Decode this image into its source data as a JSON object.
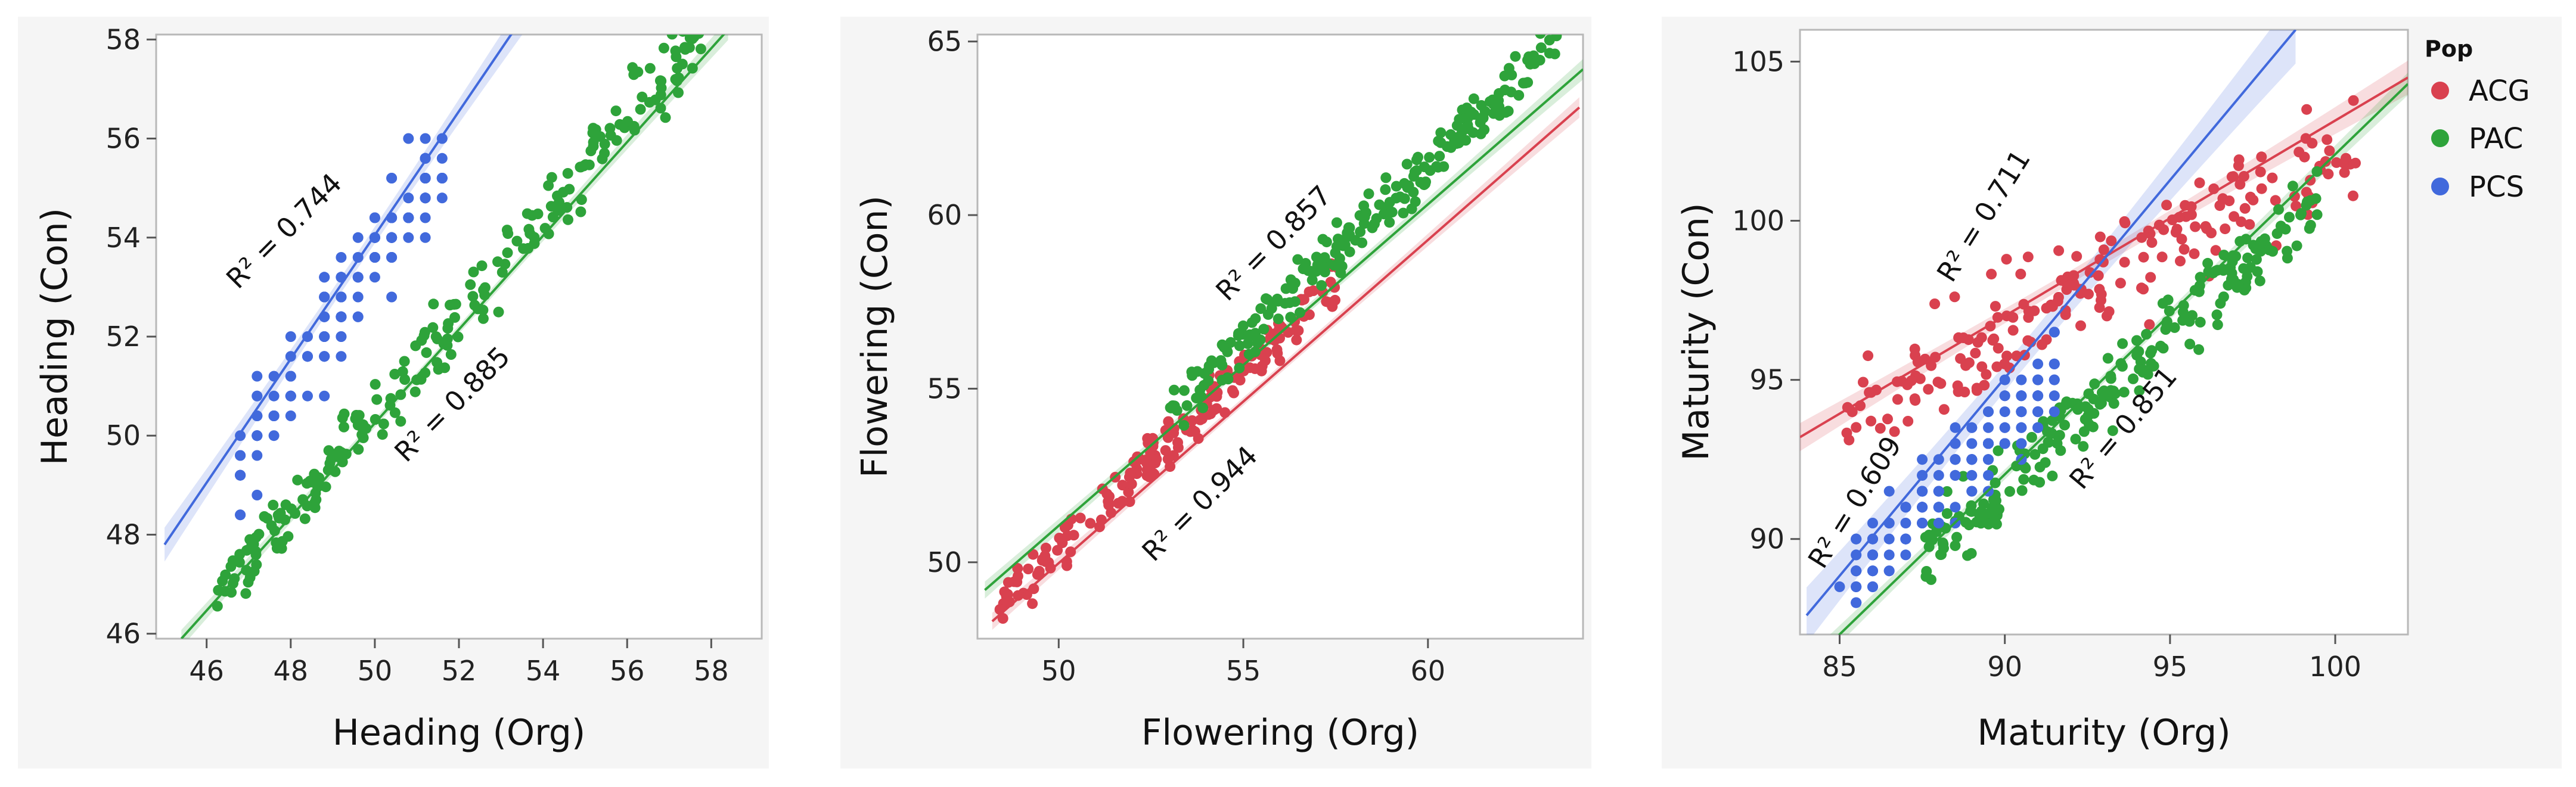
{
  "colors": {
    "ACG": "#d9414f",
    "PAC": "#2ea33a",
    "PCS": "#4169dc",
    "panel_bg": "#f5f5f5",
    "plot_bg": "#ffffff",
    "frame": "#b8b8b8"
  },
  "legend": {
    "title": "Pop",
    "items": [
      "ACG",
      "PAC",
      "PCS"
    ]
  },
  "chart_data": [
    {
      "type": "scatter",
      "xlabel": "Heading (Org)",
      "ylabel": "Heading (Con)",
      "xlim": [
        44.8,
        59.2
      ],
      "ylim": [
        45.9,
        58.1
      ],
      "xticks": [
        "46",
        "48",
        "50",
        "52",
        "54",
        "56",
        "58"
      ],
      "yticks": [
        "46",
        "48",
        "50",
        "52",
        "54",
        "56",
        "58"
      ],
      "series": [
        {
          "name": "PCS",
          "color": "PCS",
          "n": 150,
          "xr": [
            46.8,
            51.6
          ],
          "slope": 1.25,
          "intercept": -8.9,
          "noise": 1.0,
          "disc": 0.4,
          "line": [
            [
              45,
              47.8
            ],
            [
              54.6,
              59.8
            ]
          ],
          "band": 0.35,
          "ci": true
        },
        {
          "name": "PAC",
          "color": "PAC",
          "n": 230,
          "xr": [
            46.2,
            57.8
          ],
          "slope": 0.985,
          "intercept": 1.2,
          "noise": 0.7,
          "disc": 0,
          "line": [
            [
              45.4,
              45.9
            ],
            [
              58.4,
              58.2
            ]
          ],
          "band": 0.18,
          "ci": true
        }
      ],
      "annotations": [
        {
          "text": "R² = 0.744",
          "x": 48.0,
          "y": 54.0,
          "angle": -45
        },
        {
          "text": "R² = 0.885",
          "x": 52.0,
          "y": 50.5,
          "angle": -45
        }
      ]
    },
    {
      "type": "scatter",
      "xlabel": "Flowering (Org)",
      "ylabel": "Flowering (Con)",
      "xlim": [
        47.8,
        64.2
      ],
      "ylim": [
        47.8,
        65.2
      ],
      "xticks": [
        "50",
        "55",
        "60"
      ],
      "yticks": [
        "50",
        "55",
        "60",
        "65"
      ],
      "series": [
        {
          "name": "ACG",
          "color": "ACG",
          "n": 180,
          "xr": [
            48.4,
            57.6
          ],
          "slope": 1.02,
          "intercept": -0.6,
          "noise": 0.65,
          "disc": 0,
          "line": [
            [
              48.2,
              48.3
            ],
            [
              64.1,
              63.1
            ]
          ],
          "band": 0.25,
          "ci": true
        },
        {
          "name": "PAC",
          "color": "PAC",
          "n": 220,
          "xr": [
            53.0,
            63.5
          ],
          "slope": 1.02,
          "intercept": 0.3,
          "noise": 0.75,
          "disc": 0,
          "line": [
            [
              48.0,
              49.2
            ],
            [
              64.2,
              64.2
            ]
          ],
          "band": 0.25,
          "ci": true
        }
      ],
      "annotations": [
        {
          "text": "R² = 0.857",
          "x": 56.0,
          "y": 59.0,
          "angle": -45
        },
        {
          "text": "R² = 0.944",
          "x": 54.0,
          "y": 51.5,
          "angle": -45
        }
      ]
    },
    {
      "type": "scatter",
      "xlabel": "Maturity (Org)",
      "ylabel": "Maturity (Con)",
      "xlim": [
        83.8,
        102.2
      ],
      "ylim": [
        87.0,
        106.0
      ],
      "xticks": [
        "85",
        "90",
        "95",
        "100"
      ],
      "yticks": [
        "90",
        "95",
        "100",
        "105"
      ],
      "series": [
        {
          "name": "ACG",
          "color": "ACG",
          "n": 200,
          "xr": [
            85.2,
            100.8
          ],
          "slope": 0.55,
          "intercept": 47.0,
          "noise": 1.7,
          "disc": 0,
          "line": [
            [
              83.8,
              93.2
            ],
            [
              102.2,
              104.5
            ]
          ],
          "band": 0.45,
          "ci": true
        },
        {
          "name": "PAC",
          "color": "PAC",
          "n": 220,
          "xr": [
            87.5,
            99.5
          ],
          "slope": 0.95,
          "intercept": 6.2,
          "noise": 1.2,
          "disc": 0,
          "line": [
            [
              84.5,
              86.5
            ],
            [
              102.2,
              104.3
            ]
          ],
          "band": 0.3,
          "ci": true
        },
        {
          "name": "PCS",
          "color": "PCS",
          "n": 170,
          "xr": [
            85.2,
            91.5
          ],
          "slope": 1.0,
          "intercept": 3.6,
          "noise": 1.3,
          "disc": 0.5,
          "line": [
            [
              84.0,
              87.6
            ],
            [
              98.8,
              106.0
            ]
          ],
          "band": 0.9,
          "ci": true
        }
      ],
      "annotations": [
        {
          "text": "R² = 0.711",
          "x": 89.6,
          "y": 100.0,
          "angle": -58
        },
        {
          "text": "R² = 0.609",
          "x": 85.7,
          "y": 91.0,
          "angle": -58
        },
        {
          "text": "R² = 0.851",
          "x": 93.8,
          "y": 93.3,
          "angle": -50
        }
      ]
    }
  ]
}
